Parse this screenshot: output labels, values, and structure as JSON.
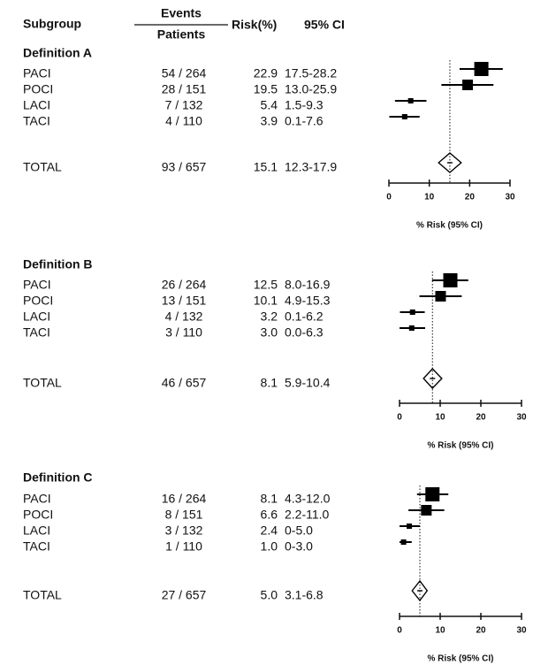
{
  "header": {
    "subgroup": "Subgroup",
    "events": "Events",
    "patients": "Patients",
    "risk": "Risk(%)",
    "ci": "95% CI"
  },
  "chart_data": [
    {
      "type": "forest",
      "title": "Definition A",
      "categories": [
        "PACI",
        "POCI",
        "LACI",
        "TACI",
        "TOTAL"
      ],
      "events": [
        "54 / 264",
        "28 / 151",
        "7 / 132",
        "4 / 110",
        "93 / 657"
      ],
      "values": [
        22.9,
        19.5,
        5.4,
        3.9,
        15.1
      ],
      "lower": [
        17.5,
        13.0,
        1.5,
        0.1,
        12.3
      ],
      "upper": [
        28.2,
        25.9,
        9.3,
        7.6,
        17.9
      ],
      "ci_labels": [
        "17.5-28.2",
        "13.0-25.9",
        "1.5-9.3",
        "0.1-7.6",
        "12.3-17.9"
      ],
      "xlim": [
        0,
        30
      ],
      "xticks": [
        0,
        10,
        20,
        30
      ],
      "xlabel": "% Risk (95% CI)",
      "color": "#000000"
    },
    {
      "type": "forest",
      "title": "Definition B",
      "categories": [
        "PACI",
        "POCI",
        "LACI",
        "TACI",
        "TOTAL"
      ],
      "events": [
        "26 / 264",
        "13 / 151",
        "4 / 132",
        "3 / 110",
        "46 / 657"
      ],
      "values": [
        12.5,
        10.1,
        3.2,
        3.0,
        8.1
      ],
      "value_labels": [
        "12.5",
        "10.1",
        "3.2",
        "3.0",
        "8.1"
      ],
      "lower": [
        8.0,
        4.9,
        0.1,
        0.0,
        5.9
      ],
      "upper": [
        16.9,
        15.3,
        6.2,
        6.3,
        10.4
      ],
      "ci_labels": [
        "8.0-16.9",
        "4.9-15.3",
        "0.1-6.2",
        "0.0-6.3",
        "5.9-10.4"
      ],
      "xlim": [
        0,
        30
      ],
      "xticks": [
        0,
        10,
        20,
        30
      ],
      "xlabel": "% Risk (95% CI)",
      "color": "#000000"
    },
    {
      "type": "forest",
      "title": "Definition C",
      "categories": [
        "PACI",
        "POCI",
        "LACI",
        "TACI",
        "TOTAL"
      ],
      "events": [
        "16 / 264",
        "8 / 151",
        "3 / 132",
        "1 / 110",
        "27 / 657"
      ],
      "values": [
        8.1,
        6.6,
        2.4,
        1.0,
        5.0
      ],
      "value_labels": [
        "8.1",
        "6.6",
        "2.4",
        "1.0",
        "5.0"
      ],
      "lower": [
        4.3,
        2.2,
        0,
        0,
        3.1
      ],
      "upper": [
        12.0,
        11.0,
        5.0,
        3.0,
        6.8
      ],
      "ci_labels": [
        "4.3-12.0",
        "2.2-11.0",
        "0-5.0",
        "0-3.0",
        "3.1-6.8"
      ],
      "xlim": [
        0,
        30
      ],
      "xticks": [
        0,
        10,
        20,
        30
      ],
      "xlabel": "% Risk (95% CI)",
      "color": "#000000"
    }
  ]
}
